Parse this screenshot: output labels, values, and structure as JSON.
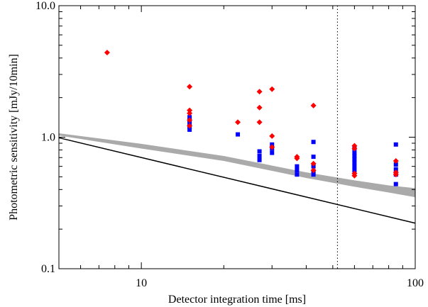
{
  "chart_data": {
    "type": "scatter",
    "xlabel": "Detector integration time [ms]",
    "ylabel": "Photometric sensitivity [mJy/10min]",
    "xscale": "log",
    "yscale": "log",
    "xlim": [
      5,
      100
    ],
    "ylim": [
      0.1,
      10.0
    ],
    "x_ticks": [
      {
        "value": 10,
        "label": "10"
      },
      {
        "value": 100,
        "label": "100"
      }
    ],
    "y_ticks": [
      {
        "value": 0.1,
        "label": "0.1"
      },
      {
        "value": 1.0,
        "label": "1.0"
      },
      {
        "value": 10.0,
        "label": "10.0"
      }
    ],
    "grid": false,
    "vertical_dotted_line_x": 52,
    "band": {
      "color": "#aaaaaa",
      "x": [
        5,
        10,
        20,
        40,
        60,
        80,
        100
      ],
      "lower": [
        1.03,
        0.82,
        0.66,
        0.49,
        0.42,
        0.38,
        0.35
      ],
      "upper": [
        1.07,
        0.89,
        0.72,
        0.54,
        0.47,
        0.43,
        0.41
      ]
    },
    "line": {
      "color": "#000000",
      "x": [
        5,
        100
      ],
      "y": [
        0.99,
        0.222
      ]
    },
    "series": [
      {
        "marker": "square",
        "color": "#0000ff",
        "points": [
          [
            15,
            1.42
          ],
          [
            15,
            1.35
          ],
          [
            15,
            1.28
          ],
          [
            15,
            1.2
          ],
          [
            15,
            1.14
          ],
          [
            22.5,
            1.05
          ],
          [
            27,
            0.78
          ],
          [
            27,
            0.72
          ],
          [
            27,
            0.67
          ],
          [
            30,
            0.88
          ],
          [
            30,
            0.82
          ],
          [
            30,
            0.76
          ],
          [
            37,
            0.6
          ],
          [
            37,
            0.56
          ],
          [
            37,
            0.52
          ],
          [
            42.5,
            0.92
          ],
          [
            42.5,
            0.71
          ],
          [
            42.5,
            0.6
          ],
          [
            42.5,
            0.55
          ],
          [
            42.5,
            0.52
          ],
          [
            60,
            0.82
          ],
          [
            60,
            0.76
          ],
          [
            60,
            0.72
          ],
          [
            60,
            0.68
          ],
          [
            60,
            0.64
          ],
          [
            60,
            0.6
          ],
          [
            60,
            0.56
          ],
          [
            85,
            0.88
          ],
          [
            85,
            0.62
          ],
          [
            85,
            0.57
          ],
          [
            85,
            0.52
          ],
          [
            85,
            0.44
          ]
        ]
      },
      {
        "marker": "diamond",
        "color": "#ff0000",
        "points": [
          [
            7.5,
            4.4
          ],
          [
            15,
            2.42
          ],
          [
            15,
            1.6
          ],
          [
            15,
            1.52
          ],
          [
            15,
            1.35
          ],
          [
            15,
            1.22
          ],
          [
            22.5,
            1.3
          ],
          [
            27,
            2.22
          ],
          [
            27,
            1.68
          ],
          [
            27,
            1.3
          ],
          [
            30,
            2.32
          ],
          [
            30,
            1.02
          ],
          [
            30,
            0.84
          ],
          [
            37,
            0.71
          ],
          [
            37,
            0.69
          ],
          [
            42.5,
            1.74
          ],
          [
            42.5,
            0.63
          ],
          [
            42.5,
            0.56
          ],
          [
            60,
            0.86
          ],
          [
            60,
            0.82
          ],
          [
            60,
            0.53
          ],
          [
            60,
            0.51
          ],
          [
            85,
            0.66
          ],
          [
            85,
            0.54
          ],
          [
            85,
            0.52
          ]
        ]
      }
    ]
  }
}
